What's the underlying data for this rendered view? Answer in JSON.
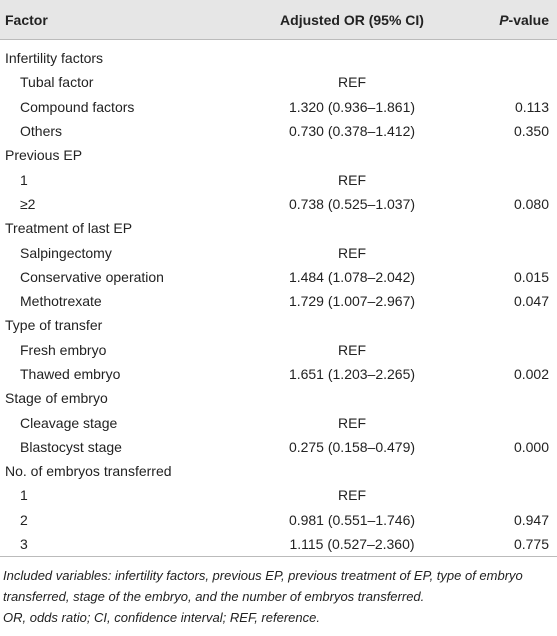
{
  "table": {
    "header": [
      "Factor",
      "Adjusted OR (95% CI)",
      [
        "P",
        "-value"
      ]
    ],
    "groups": [
      {
        "label": "Infertility factors",
        "rows": [
          [
            "Tubal factor",
            "REF",
            ""
          ],
          [
            "Compound factors",
            "1.320 (0.936–1.861)",
            "0.113"
          ],
          [
            "Others",
            "0.730 (0.378–1.412)",
            "0.350"
          ]
        ]
      },
      {
        "label": "Previous EP",
        "rows": [
          [
            "1",
            "REF",
            ""
          ],
          [
            "≥2",
            "0.738 (0.525–1.037)",
            "0.080"
          ]
        ]
      },
      {
        "label": "Treatment of last EP",
        "rows": [
          [
            "Salpingectomy",
            "REF",
            ""
          ],
          [
            "Conservative operation",
            "1.484 (1.078–2.042)",
            "0.015"
          ],
          [
            "Methotrexate",
            "1.729 (1.007–2.967)",
            "0.047"
          ]
        ]
      },
      {
        "label": "Type of transfer",
        "rows": [
          [
            "Fresh embryo",
            "REF",
            ""
          ],
          [
            "Thawed embryo",
            "1.651 (1.203–2.265)",
            "0.002"
          ]
        ]
      },
      {
        "label": "Stage of embryo",
        "rows": [
          [
            "Cleavage stage",
            "REF",
            ""
          ],
          [
            "Blastocyst stage",
            "0.275 (0.158–0.479)",
            "0.000"
          ]
        ]
      },
      {
        "label": "No. of embryos transferred",
        "rows": [
          [
            "1",
            "REF",
            ""
          ],
          [
            "2",
            "0.981 (0.551–1.746)",
            "0.947"
          ],
          [
            "3",
            "1.115 (0.527–2.360)",
            "0.775"
          ]
        ]
      }
    ],
    "notes": [
      "Included variables: infertility factors, previous EP, previous treatment of EP, type of embryo transferred, stage of the embryo, and the number of embryos transferred.",
      "OR, odds ratio; CI, confidence interval; REF, reference."
    ]
  }
}
